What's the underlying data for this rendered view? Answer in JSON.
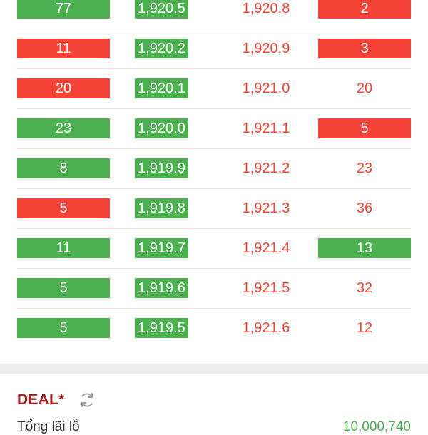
{
  "orderbook": {
    "rows": [
      {
        "bid_volume": "77",
        "bid_price": "1,920.5",
        "ask_price": "1,920.8",
        "ask_volume": "2"
      },
      {
        "bid_volume": "11",
        "bid_price": "1,920.2",
        "ask_price": "1,920.9",
        "ask_volume": "3"
      },
      {
        "bid_volume": "20",
        "bid_price": "1,920.1",
        "ask_price": "1,921.0",
        "ask_volume": "20"
      },
      {
        "bid_volume": "23",
        "bid_price": "1,920.0",
        "ask_price": "1,921.1",
        "ask_volume": "5"
      },
      {
        "bid_volume": "8",
        "bid_price": "1,919.9",
        "ask_price": "1,921.2",
        "ask_volume": "23"
      },
      {
        "bid_volume": "5",
        "bid_price": "1,919.8",
        "ask_price": "1,921.3",
        "ask_volume": "36"
      },
      {
        "bid_volume": "11",
        "bid_price": "1,919.7",
        "ask_price": "1,921.4",
        "ask_volume": "13"
      },
      {
        "bid_volume": "5",
        "bid_price": "1,919.6",
        "ask_price": "1,921.5",
        "ask_volume": "32"
      },
      {
        "bid_volume": "5",
        "bid_price": "1,919.5",
        "ask_price": "1,921.6",
        "ask_volume": "12"
      }
    ]
  },
  "colors": {
    "buy_green": "#4caf50",
    "sell_red": "#f44336",
    "deal_title": "#a81c1c"
  },
  "deal": {
    "title": "DEAL*",
    "refresh_icon": "refresh-icon",
    "summary_label": "Tổng lãi lỗ",
    "summary_value": "10,000,740"
  }
}
